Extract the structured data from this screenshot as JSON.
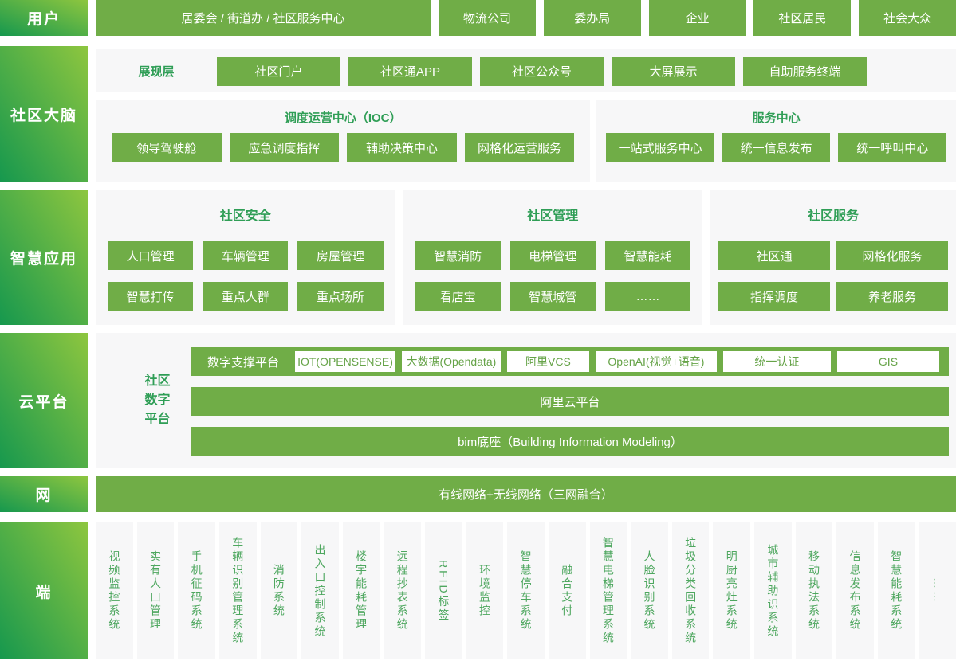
{
  "palette": {
    "accent_green": "#70ad47",
    "title_green": "#2f9e56",
    "panel_bg": "#f7f7f8",
    "rail_gradient_from": "#16984e",
    "rail_gradient_to": "#8ec63f",
    "edge_text_green": "#4ea75f",
    "white_box_text": "#66a348"
  },
  "users": {
    "row_label": "用户",
    "items": [
      "居委会 / 街道办 / 社区服务中心",
      "物流公司",
      "委办局",
      "企业",
      "社区居民",
      "社会大众"
    ]
  },
  "brain": {
    "row_label": "社区大脑",
    "presentation": {
      "label": "展现层",
      "items": [
        "社区门户",
        "社区通APP",
        "社区公众号",
        "大屏展示",
        "自助服务终端"
      ]
    },
    "ioc": {
      "title": "调度运营中心（IOC）",
      "items": [
        "领导驾驶舱",
        "应急调度指挥",
        "辅助决策中心",
        "网格化运营服务"
      ]
    },
    "service": {
      "title": "服务中心",
      "items": [
        "一站式服务中心",
        "统一信息发布",
        "统一呼叫中心"
      ]
    }
  },
  "apps": {
    "row_label": "智慧应用",
    "security": {
      "title": "社区安全",
      "items": [
        "人口管理",
        "车辆管理",
        "房屋管理",
        "智慧打传",
        "重点人群",
        "重点场所"
      ]
    },
    "management": {
      "title": "社区管理",
      "items": [
        "智慧消防",
        "电梯管理",
        "智慧能耗",
        "看店宝",
        "智慧城管",
        "……"
      ]
    },
    "service": {
      "title": "社区服务",
      "items": [
        "社区通",
        "网格化服务",
        "指挥调度",
        "养老服务"
      ]
    }
  },
  "cloud": {
    "row_label": "云平台",
    "platform_label": "社区\n数字\n平台",
    "support": {
      "label": "数字支撑平台",
      "items": [
        "IOT(OPENSENSE)",
        "大数据(Opendata)",
        "阿里VCS",
        "OpenAI(视觉+语音)",
        "统一认证",
        "GIS"
      ]
    },
    "bars": [
      "阿里云平台",
      "bim底座（Building Information Modeling）"
    ]
  },
  "network": {
    "row_label": "网",
    "bar": "有线网络+无线网络（三网融合）"
  },
  "edge": {
    "row_label": "端",
    "items": [
      "视频监控系统",
      "实有人口管理",
      "手机征码系统",
      "车辆识别管理系统",
      "消防系统",
      "出入口控制系统",
      "楼宇能耗管理",
      "远程抄表系统",
      "RFID标签",
      "环境监控",
      "智慧停车系统",
      "融合支付",
      "智慧电梯管理系统",
      "人脸识别系统",
      "垃圾分类回收系统",
      "明厨亮灶系统",
      "城市辅助识系统",
      "移动执法系统",
      "信息发布系统",
      "智慧能耗系统",
      "……"
    ]
  }
}
